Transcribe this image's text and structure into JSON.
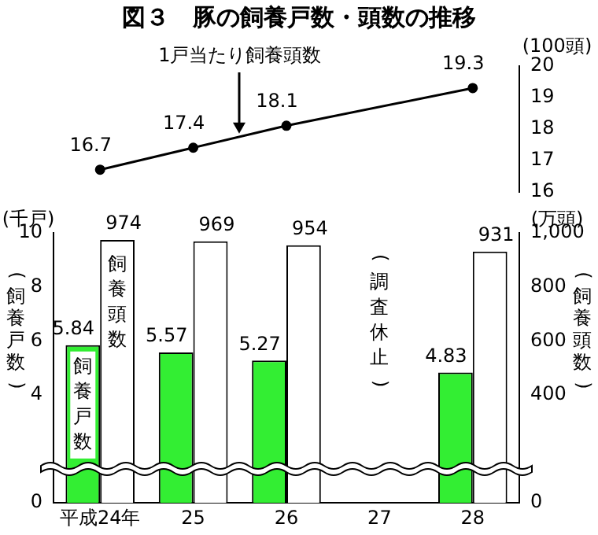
{
  "chart_data": [
    {
      "type": "line",
      "title": "図３　豚の飼養戸数・頭数の推移",
      "categories": [
        null,
        null,
        null,
        null,
        null
      ],
      "series": [
        {
          "name": "1戸当たり飼養頭数",
          "color": "#000000",
          "values": [
            16.7,
            17.4,
            18.1,
            null,
            19.3
          ]
        }
      ],
      "ylim": [
        16,
        20
      ],
      "yticks": [
        16,
        17,
        18,
        19,
        20
      ],
      "ylabel": "(100頭)",
      "data_labels": true,
      "marker": "circle",
      "grid": false,
      "legend": false,
      "tick_labels": "y"
    },
    {
      "type": "bar",
      "categories": [
        "平成24年",
        "25",
        "26",
        "27",
        "28"
      ],
      "series": [
        {
          "name": "飼養戸数",
          "color": "#33ee33",
          "values": [
            5.84,
            5.57,
            5.27,
            null,
            4.83
          ]
        },
        {
          "name": "飼養頭数",
          "color": "#ffffff",
          "values": [
            974,
            969,
            954,
            null,
            931
          ],
          "axis": "y2"
        }
      ],
      "ylim": [
        0,
        10
      ],
      "yticks": [
        0,
        4,
        6,
        8,
        10
      ],
      "y2lim": [
        0,
        1000
      ],
      "y2ticks": [
        0,
        400,
        600,
        800,
        {
          "value": 1000,
          "label": "1,000"
        }
      ],
      "ylabel": "(飼養戸数)",
      "y2label": "(飼養頭数)",
      "annotations": [
        "(千戸)",
        "(万頭)",
        "(調査休止)"
      ],
      "data_labels": true,
      "grid": false,
      "legend": false
    }
  ]
}
